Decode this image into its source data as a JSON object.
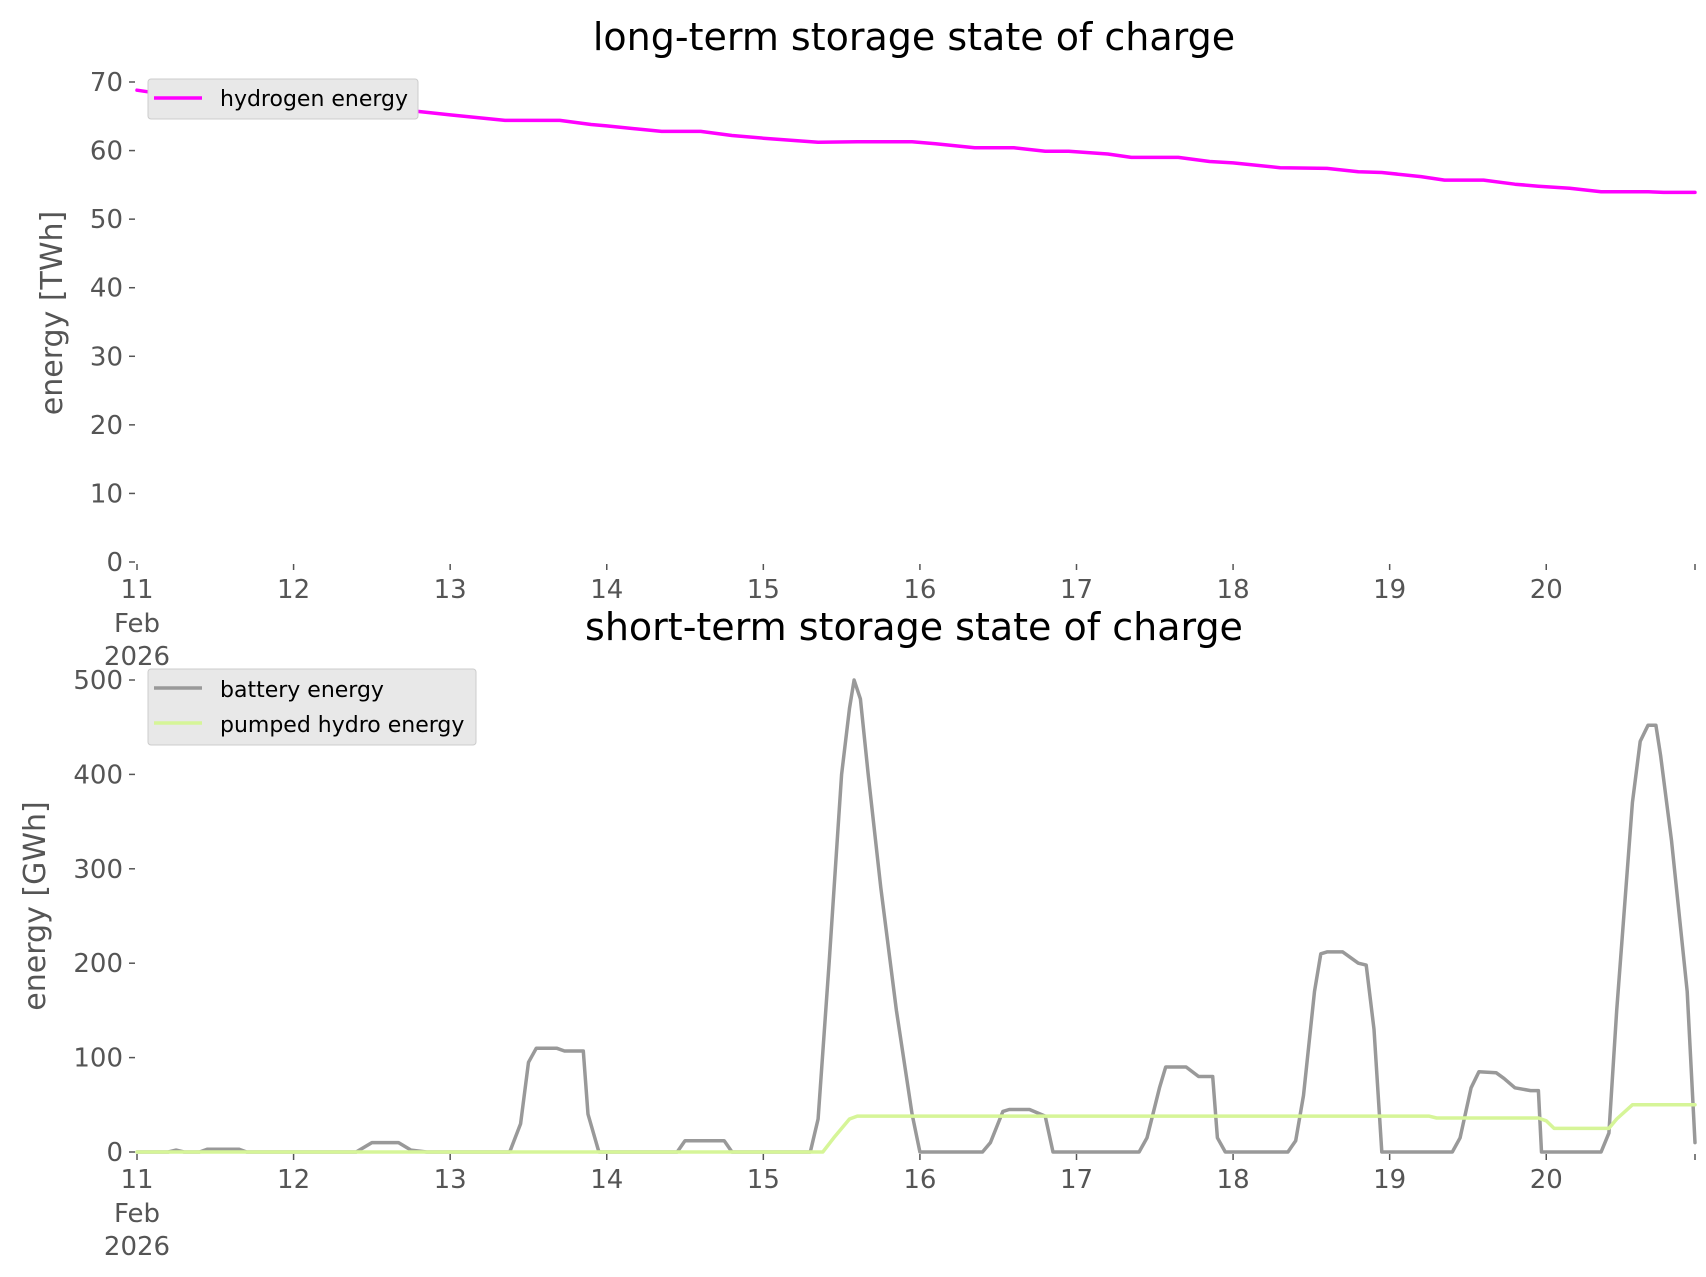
{
  "chart_data": [
    {
      "type": "line",
      "title": "long-term storage state of charge",
      "xlabel": "",
      "ylabel": "energy [TWh]",
      "ylim": [
        0,
        70
      ],
      "yticks": [
        0,
        10,
        20,
        30,
        40,
        50,
        60,
        70
      ],
      "xlim": [
        11,
        20.95
      ],
      "xticks": [
        11,
        12,
        13,
        14,
        15,
        16,
        17,
        18,
        19,
        20
      ],
      "xtick_labels": [
        "11",
        "12",
        "13",
        "14",
        "15",
        "16",
        "17",
        "18",
        "19",
        "20"
      ],
      "xtick_sublabels": [
        "Feb",
        "2026"
      ],
      "grid": false,
      "legend": "top-left",
      "series": [
        {
          "name": "hydrogen energy",
          "color": "#ff00ff",
          "points": [
            [
              11.0,
              68.8
            ],
            [
              11.3,
              67.8
            ],
            [
              11.6,
              67.1
            ],
            [
              12.0,
              66.8
            ],
            [
              12.3,
              66.5
            ],
            [
              12.6,
              66.2
            ],
            [
              13.0,
              65.2
            ],
            [
              13.35,
              64.4
            ],
            [
              13.7,
              64.4
            ],
            [
              13.9,
              63.8
            ],
            [
              14.0,
              63.6
            ],
            [
              14.35,
              62.8
            ],
            [
              14.6,
              62.8
            ],
            [
              14.8,
              62.2
            ],
            [
              15.0,
              61.8
            ],
            [
              15.35,
              61.2
            ],
            [
              15.6,
              61.3
            ],
            [
              15.95,
              61.3
            ],
            [
              16.1,
              61.0
            ],
            [
              16.35,
              60.4
            ],
            [
              16.6,
              60.4
            ],
            [
              16.8,
              59.9
            ],
            [
              16.95,
              59.9
            ],
            [
              17.2,
              59.5
            ],
            [
              17.35,
              59.0
            ],
            [
              17.65,
              59.0
            ],
            [
              17.85,
              58.4
            ],
            [
              18.0,
              58.2
            ],
            [
              18.3,
              57.5
            ],
            [
              18.6,
              57.4
            ],
            [
              18.8,
              56.9
            ],
            [
              18.95,
              56.8
            ],
            [
              19.2,
              56.2
            ],
            [
              19.35,
              55.7
            ],
            [
              19.6,
              55.7
            ],
            [
              19.8,
              55.1
            ],
            [
              19.95,
              54.8
            ],
            [
              20.15,
              54.5
            ],
            [
              20.35,
              54.0
            ],
            [
              20.65,
              54.0
            ],
            [
              20.75,
              53.9
            ],
            [
              20.95,
              53.9
            ]
          ]
        }
      ]
    },
    {
      "type": "line",
      "title": "short-term storage state of charge",
      "xlabel": "",
      "ylabel": "energy [GWh]",
      "ylim": [
        0,
        500
      ],
      "yticks": [
        0,
        100,
        200,
        300,
        400,
        500
      ],
      "xlim": [
        11,
        20.95
      ],
      "xticks": [
        11,
        12,
        13,
        14,
        15,
        16,
        17,
        18,
        19,
        20
      ],
      "xtick_labels": [
        "11",
        "12",
        "13",
        "14",
        "15",
        "16",
        "17",
        "18",
        "19",
        "20"
      ],
      "xtick_sublabels": [
        "Feb",
        "2026"
      ],
      "grid": false,
      "legend": "top-left",
      "series": [
        {
          "name": "battery energy",
          "color": "#999999",
          "points": [
            [
              11.0,
              0
            ],
            [
              11.2,
              0
            ],
            [
              11.25,
              2
            ],
            [
              11.3,
              0
            ],
            [
              11.4,
              0
            ],
            [
              11.45,
              3
            ],
            [
              11.65,
              3
            ],
            [
              11.7,
              0
            ],
            [
              12.0,
              0
            ],
            [
              12.4,
              0
            ],
            [
              12.5,
              10
            ],
            [
              12.67,
              10
            ],
            [
              12.75,
              2
            ],
            [
              12.85,
              0
            ],
            [
              13.0,
              0
            ],
            [
              13.38,
              0
            ],
            [
              13.45,
              30
            ],
            [
              13.5,
              95
            ],
            [
              13.55,
              110
            ],
            [
              13.68,
              110
            ],
            [
              13.73,
              107
            ],
            [
              13.85,
              107
            ],
            [
              13.88,
              40
            ],
            [
              13.95,
              0
            ],
            [
              14.45,
              0
            ],
            [
              14.5,
              12
            ],
            [
              14.72,
              12
            ],
            [
              14.75,
              12
            ],
            [
              14.8,
              0
            ],
            [
              15.0,
              0
            ],
            [
              15.3,
              0
            ],
            [
              15.35,
              35
            ],
            [
              15.42,
              200
            ],
            [
              15.5,
              400
            ],
            [
              15.55,
              470
            ],
            [
              15.58,
              500
            ],
            [
              15.62,
              480
            ],
            [
              15.67,
              400
            ],
            [
              15.75,
              280
            ],
            [
              15.85,
              150
            ],
            [
              15.95,
              40
            ],
            [
              16.0,
              0
            ],
            [
              16.1,
              0
            ],
            [
              16.4,
              0
            ],
            [
              16.45,
              10
            ],
            [
              16.53,
              43
            ],
            [
              16.57,
              45
            ],
            [
              16.7,
              45
            ],
            [
              16.8,
              38
            ],
            [
              16.85,
              0
            ],
            [
              17.0,
              0
            ],
            [
              17.4,
              0
            ],
            [
              17.45,
              15
            ],
            [
              17.53,
              68
            ],
            [
              17.57,
              90
            ],
            [
              17.7,
              90
            ],
            [
              17.78,
              80
            ],
            [
              17.87,
              80
            ],
            [
              17.9,
              15
            ],
            [
              17.95,
              0
            ],
            [
              18.0,
              0
            ],
            [
              18.35,
              0
            ],
            [
              18.4,
              12
            ],
            [
              18.45,
              60
            ],
            [
              18.52,
              170
            ],
            [
              18.56,
              210
            ],
            [
              18.6,
              212
            ],
            [
              18.7,
              212
            ],
            [
              18.8,
              200
            ],
            [
              18.85,
              198
            ],
            [
              18.9,
              130
            ],
            [
              18.95,
              0
            ],
            [
              19.0,
              0
            ],
            [
              19.4,
              0
            ],
            [
              19.45,
              15
            ],
            [
              19.52,
              68
            ],
            [
              19.57,
              85
            ],
            [
              19.68,
              84
            ],
            [
              19.73,
              78
            ],
            [
              19.8,
              68
            ],
            [
              19.9,
              65
            ],
            [
              19.95,
              65
            ],
            [
              19.97,
              0
            ],
            [
              20.0,
              0
            ],
            [
              20.35,
              0
            ],
            [
              20.4,
              20
            ],
            [
              20.45,
              150
            ],
            [
              20.55,
              370
            ],
            [
              20.6,
              435
            ],
            [
              20.65,
              452
            ],
            [
              20.7,
              452
            ],
            [
              20.73,
              420
            ],
            [
              20.8,
              330
            ],
            [
              20.9,
              170
            ],
            [
              20.95,
              10
            ]
          ]
        },
        {
          "name": "pumped hydro energy",
          "color": "#d6f598",
          "points": [
            [
              11.0,
              0
            ],
            [
              15.38,
              0
            ],
            [
              15.45,
              15
            ],
            [
              15.55,
              35
            ],
            [
              15.6,
              38
            ],
            [
              19.25,
              38
            ],
            [
              19.3,
              36
            ],
            [
              19.95,
              36
            ],
            [
              20.0,
              33
            ],
            [
              20.05,
              25
            ],
            [
              20.4,
              25
            ],
            [
              20.45,
              35
            ],
            [
              20.55,
              50
            ],
            [
              20.95,
              50
            ]
          ]
        }
      ]
    }
  ]
}
